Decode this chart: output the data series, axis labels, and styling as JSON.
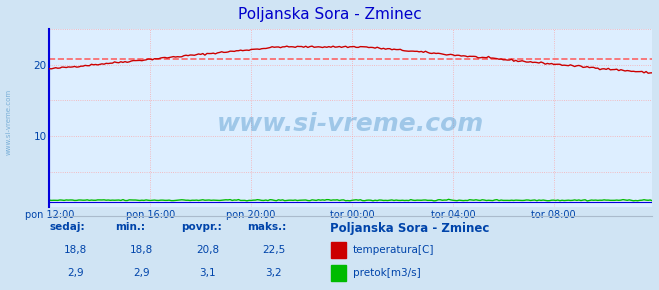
{
  "title": "Poljanska Sora - Zminec",
  "title_color": "#0000cc",
  "bg_color": "#d0e4f4",
  "plot_bg_color": "#ddeeff",
  "grid_color": "#ff9999",
  "xlim": [
    0,
    287
  ],
  "ylim": [
    0,
    25
  ],
  "yticks": [
    10,
    20
  ],
  "xtick_labels": [
    "pon 12:00",
    "pon 16:00",
    "pon 20:00",
    "tor 00:00",
    "tor 04:00",
    "tor 08:00"
  ],
  "xtick_positions": [
    0,
    48,
    96,
    144,
    192,
    240
  ],
  "temp_avg": 20.8,
  "temp_color": "#cc0000",
  "flow_color": "#00bb00",
  "blue_line_color": "#0000dd",
  "dashed_line_color": "#ff5555",
  "watermark_color": "#5599cc",
  "info_text_color": "#0044aa",
  "legend_title": "Poljanska Sora - Zminec",
  "sedaj_label": "sedaj:",
  "min_label": "min.:",
  "povpr_label": "povpr.:",
  "maks_label": "maks.:",
  "sedaj_temp": "18,8",
  "min_temp": "18,8",
  "povpr_temp": "20,8",
  "maks_temp": "22,5",
  "sedaj_flow": "2,9",
  "min_flow": "2,9",
  "povpr_flow": "3,1",
  "maks_flow": "3,2",
  "temp_label": "temperatura[C]",
  "flow_label": "pretok[m3/s]"
}
